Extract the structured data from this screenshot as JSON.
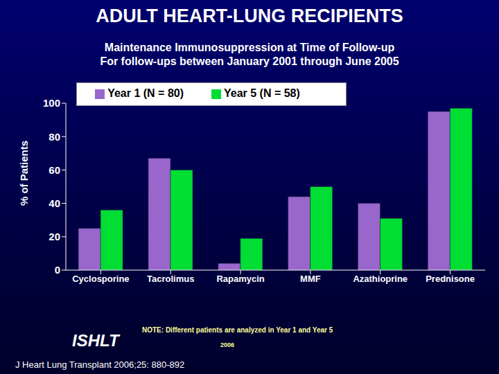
{
  "chart_data": {
    "type": "bar",
    "title": "ADULT HEART-LUNG RECIPIENTS",
    "subtitle": [
      "Maintenance Immunosuppression at Time of Follow-up",
      "For follow-ups between January 2001 through June 2005"
    ],
    "y_label": "% of Patients",
    "categories": [
      "Cyclosporine",
      "Tacrolimus",
      "Rapamycin",
      "MMF",
      "Azathioprine",
      "Prednisone"
    ],
    "series": [
      {
        "name": "Year 1 (N = 80)",
        "color": "#9966cc",
        "values": [
          25,
          67,
          4,
          44,
          40,
          95
        ]
      },
      {
        "name": "Year 5 (N = 58)",
        "color": "#00dd33",
        "values": [
          36,
          60,
          19,
          50,
          31,
          97
        ]
      }
    ],
    "ylim": [
      0,
      100
    ],
    "yticks": [
      0,
      20,
      40,
      60,
      80,
      100
    ],
    "grid": false,
    "legend": "top",
    "annotations": [
      "ISHLT",
      "NOTE: Different patients are analyzed in Year 1 and Year 5",
      "2006",
      "J Heart Lung Transplant 2006;25: 880-892"
    ]
  }
}
